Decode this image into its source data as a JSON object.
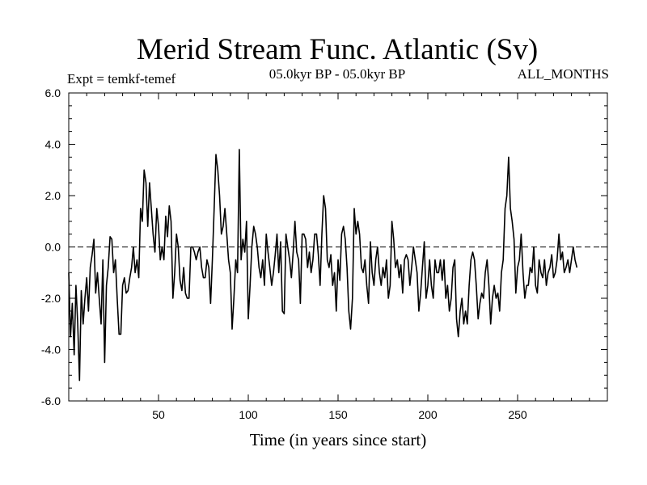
{
  "chart_data": {
    "type": "line",
    "title": "Merid Stream Func. Atlantic (Sv)",
    "subtitle_left": "Expt = temkf-temef",
    "subtitle_center": "05.0kyr BP - 05.0kyr BP",
    "subtitle_right": "ALL_MONTHS",
    "xlabel": "Time (in years since start)",
    "ylabel": "",
    "xlim": [
      0,
      300
    ],
    "ylim": [
      -6,
      6
    ],
    "xticks": [
      50,
      100,
      150,
      200,
      250
    ],
    "xtick_labels": [
      "50",
      "100",
      "150",
      "200",
      "250"
    ],
    "yticks": [
      6,
      4,
      2,
      0,
      -2,
      -4,
      -6
    ],
    "ytick_labels": [
      "6.0",
      "4.0",
      "2.0",
      "0.0",
      "-2.0",
      "-4.0",
      "-6.0"
    ],
    "reference_line": {
      "y": 0,
      "style": "dashed"
    },
    "series": [
      {
        "name": "Merid Stream Func.",
        "x_start": 0,
        "x_step": 1,
        "values": [
          -1.0,
          -3.5,
          -2.2,
          -4.2,
          -1.5,
          -3.0,
          -5.2,
          -1.7,
          -3.0,
          -2.0,
          -1.2,
          -2.5,
          -0.8,
          -0.3,
          0.3,
          -1.8,
          -1.0,
          -2.0,
          -3.0,
          -0.5,
          -4.5,
          -1.5,
          -0.8,
          0.4,
          0.3,
          -1.0,
          -0.5,
          -2.0,
          -3.4,
          -3.4,
          -1.5,
          -1.2,
          -1.8,
          -1.7,
          -1.2,
          -0.8,
          0.0,
          -1.0,
          -0.5,
          -1.2,
          1.5,
          1.0,
          3.0,
          2.5,
          0.8,
          2.5,
          1.5,
          0.5,
          -0.2,
          1.5,
          0.8,
          -0.5,
          0.0,
          -0.5,
          1.2,
          0.4,
          1.6,
          1.0,
          -2.0,
          -1.0,
          0.5,
          0.0,
          -1.3,
          -1.7,
          -0.8,
          -1.8,
          -2.0,
          -2.0,
          0.0,
          0.0,
          -0.2,
          -0.5,
          -0.2,
          0.0,
          -0.8,
          -1.2,
          -1.2,
          -0.5,
          -0.8,
          -2.2,
          -0.5,
          1.5,
          3.6,
          3.0,
          2.0,
          0.5,
          0.8,
          1.5,
          0.5,
          -0.5,
          -1.0,
          -3.2,
          -2.0,
          -0.5,
          -1.0,
          3.8,
          -0.5,
          0.3,
          -0.2,
          1.0,
          -2.8,
          -1.5,
          0.0,
          0.8,
          0.5,
          0.0,
          -0.8,
          -1.2,
          -0.5,
          -1.5,
          0.5,
          -0.2,
          -0.8,
          -1.5,
          -1.0,
          -0.3,
          0.5,
          -1.0,
          0.2,
          -2.5,
          -2.6,
          0.5,
          0.0,
          -0.5,
          -1.2,
          -0.2,
          1.0,
          -0.2,
          -0.5,
          -2.2,
          0.5,
          0.5,
          0.3,
          -0.8,
          -0.2,
          -1.0,
          -0.5,
          0.5,
          0.5,
          -0.3,
          -1.5,
          0.5,
          2.0,
          1.5,
          -0.5,
          -0.8,
          -0.3,
          -1.5,
          -1.0,
          -2.5,
          -0.5,
          -1.3,
          0.5,
          0.8,
          0.3,
          -0.8,
          -2.5,
          -3.2,
          -2.0,
          1.5,
          0.5,
          1.0,
          0.5,
          -0.8,
          -1.0,
          -0.5,
          -1.5,
          -2.2,
          0.2,
          -1.0,
          -1.5,
          -0.5,
          0.0,
          -1.0,
          -1.5,
          -0.8,
          -1.2,
          -0.5,
          -2.0,
          -1.5,
          1.0,
          0.3,
          -0.8,
          -0.5,
          -1.2,
          -0.7,
          -1.8,
          -0.5,
          -0.3,
          -0.5,
          -1.5,
          -0.8,
          0.0,
          -0.5,
          -1.0,
          -2.5,
          -1.8,
          -0.8,
          0.2,
          -2.0,
          -1.5,
          -0.5,
          -1.5,
          -2.0,
          -0.5,
          -1.0,
          -1.0,
          -0.5,
          -1.3,
          -0.5,
          -2.0,
          -1.5,
          -2.5,
          -2.0,
          -0.8,
          -0.5,
          -2.8,
          -3.5,
          -2.5,
          -2.0,
          -3.0,
          -2.5,
          -3.0,
          -1.5,
          -0.5,
          -0.2,
          -0.5,
          -1.5,
          -2.8,
          -2.2,
          -1.8,
          -2.0,
          -1.0,
          -0.5,
          -1.5,
          -3.0,
          -2.0,
          -1.5,
          -2.0,
          -1.8,
          -2.5,
          -1.0,
          -0.5,
          1.5,
          2.0,
          3.5,
          1.5,
          1.0,
          0.3,
          -1.8,
          -0.8,
          -0.5,
          0.5,
          -1.0,
          -2.0,
          -1.5,
          -1.5,
          -0.8,
          -1.0,
          0.0,
          -1.5,
          -1.8,
          -0.5,
          -1.0,
          -1.2,
          -0.5,
          -1.5,
          -1.0,
          -0.8,
          -0.3,
          -1.2,
          -1.0,
          -0.5,
          0.5,
          -0.5,
          -0.2,
          -1.0,
          -0.8,
          -0.5,
          -1.0,
          -0.5,
          0.0,
          -0.5,
          -0.8
        ]
      }
    ]
  }
}
